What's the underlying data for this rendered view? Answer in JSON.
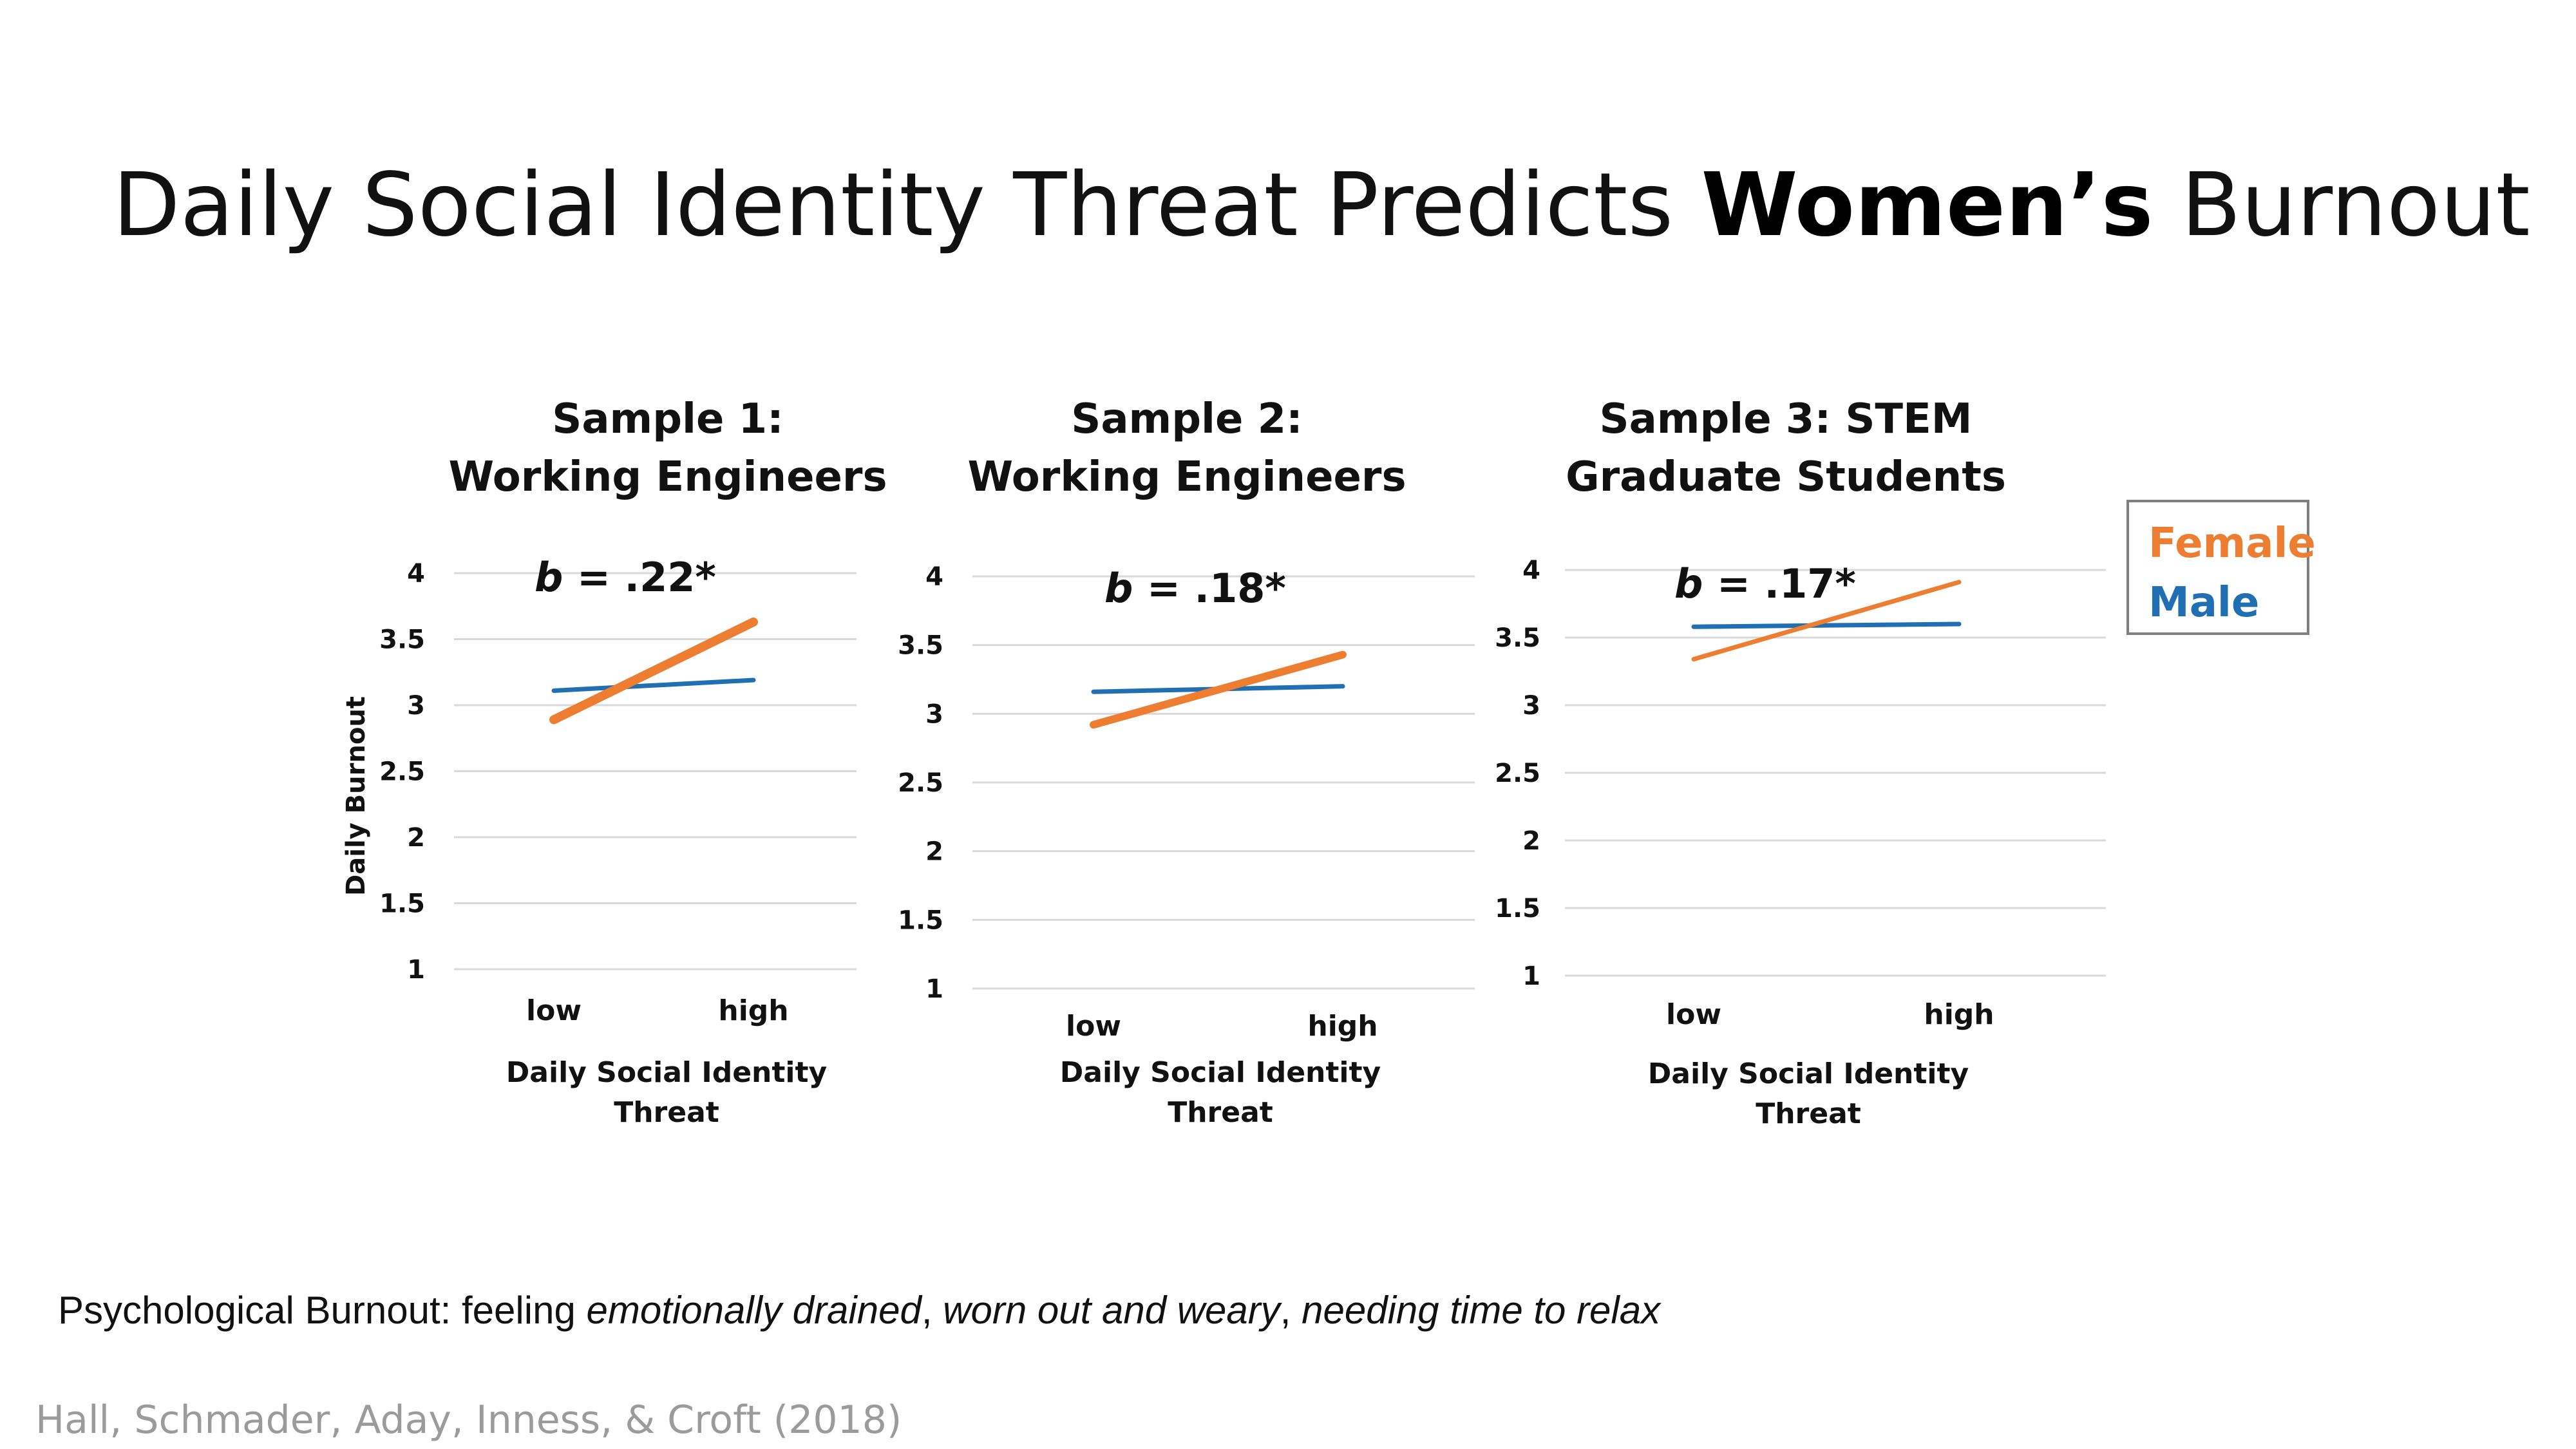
{
  "slide": {
    "title_pre": "Daily Social Identity Threat Predicts ",
    "title_bold": "Women’s",
    "title_post": " Burnout",
    "definition_lead": "Psychological Burnout: feeling ",
    "definition_term1": "emotionally drained",
    "definition_sep1": ", ",
    "definition_term2": "worn out and weary",
    "definition_sep2": ", ",
    "definition_term3": "needing time to relax",
    "citation": "Hall, Schmader, Aday, Inness, & Croft (2018)"
  },
  "legend": {
    "female": "Female",
    "male": "Male"
  },
  "colors": {
    "female": "#ED7D31",
    "male": "#1F6FB2",
    "grid": "#d9d9d9"
  },
  "chart_data": [
    {
      "type": "line",
      "title_lines": [
        "Sample 1:",
        "Working Engineers"
      ],
      "categories": [
        "low",
        "high"
      ],
      "series": [
        {
          "name": "Female",
          "values": [
            2.89,
            3.63
          ]
        },
        {
          "name": "Male",
          "values": [
            3.11,
            3.19
          ]
        }
      ],
      "xlabel_lines": [
        "Daily Social Identity",
        "Threat"
      ],
      "ylabel": "Daily Burnout",
      "yticks": [
        "1",
        "1.5",
        "2",
        "2.5",
        "3",
        "3.5",
        "4"
      ],
      "ylim": [
        1,
        4
      ],
      "grid": true,
      "annotation": {
        "symbol": "b",
        "text": " = .22*"
      }
    },
    {
      "type": "line",
      "title_lines": [
        "Sample 2:",
        "Working Engineers"
      ],
      "categories": [
        "low",
        "high"
      ],
      "series": [
        {
          "name": "Female",
          "values": [
            2.92,
            3.43
          ]
        },
        {
          "name": "Male",
          "values": [
            3.16,
            3.2
          ]
        }
      ],
      "xlabel_lines": [
        "Daily Social Identity",
        "Threat"
      ],
      "ylabel": "",
      "yticks": [
        "1",
        "1.5",
        "2",
        "2.5",
        "3",
        "3.5",
        "4"
      ],
      "ylim": [
        1,
        4
      ],
      "grid": true,
      "annotation": {
        "symbol": "b",
        "text": " = .18*"
      }
    },
    {
      "type": "line",
      "title_lines": [
        "Sample 3: STEM",
        "Graduate Students"
      ],
      "categories": [
        "low",
        "high"
      ],
      "series": [
        {
          "name": "Female",
          "values": [
            3.34,
            3.91
          ]
        },
        {
          "name": "Male",
          "values": [
            3.58,
            3.6
          ]
        }
      ],
      "xlabel_lines": [
        "Daily Social Identity",
        "Threat"
      ],
      "ylabel": "",
      "yticks": [
        "1",
        "1.5",
        "2",
        "2.5",
        "3",
        "3.5",
        "4"
      ],
      "ylim": [
        1,
        4
      ],
      "grid": true,
      "annotation": {
        "symbol": "b",
        "text": " = .17*"
      }
    }
  ]
}
